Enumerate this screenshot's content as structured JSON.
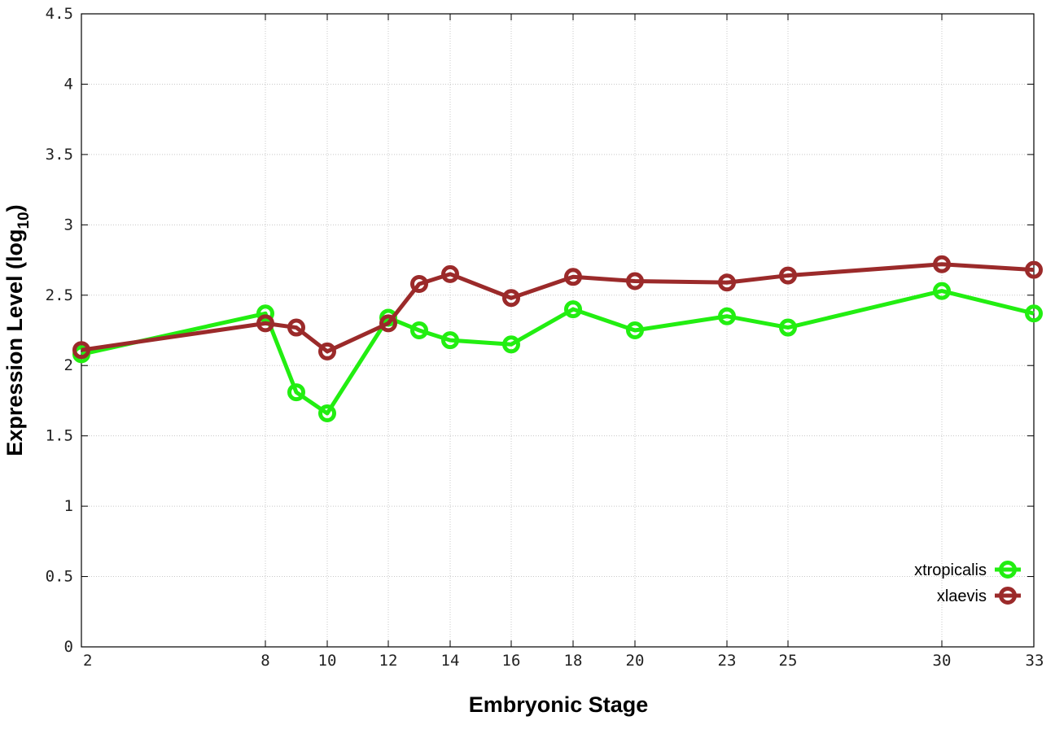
{
  "chart_data": {
    "type": "line",
    "xlabel": "Embryonic Stage",
    "ylabel": "Expression Level (log",
    "ylabel_subscript": "10",
    "ylabel_close": ")",
    "ylim": [
      0,
      4.5
    ],
    "y_ticks": [
      0,
      0.5,
      1,
      1.5,
      2,
      2.5,
      3,
      3.5,
      4,
      4.5
    ],
    "y_tick_labels": [
      "0",
      "0.5",
      "1",
      "1.5",
      "2",
      "2.5",
      "3",
      "3.5",
      "4",
      "4.5"
    ],
    "categories": [
      "2",
      "8",
      "9",
      "10",
      "12",
      "13",
      "14",
      "16",
      "18",
      "20",
      "23",
      "25",
      "30",
      "33"
    ],
    "x_tick_labels": [
      "2",
      "8",
      "10",
      "12",
      "14",
      "16",
      "18",
      "20",
      "23",
      "25",
      "30",
      "33"
    ],
    "grid": true,
    "legend_position": "bottom-right",
    "series": [
      {
        "name": "xtropicalis",
        "color": "#22ee11",
        "x": [
          2,
          8,
          9,
          10,
          12,
          13,
          14,
          16,
          18,
          20,
          23,
          25,
          30,
          33
        ],
        "values": [
          2.08,
          2.37,
          1.81,
          1.66,
          2.34,
          2.25,
          2.18,
          2.15,
          2.4,
          2.25,
          2.35,
          2.27,
          2.53,
          2.37
        ]
      },
      {
        "name": "xlaevis",
        "color": "#9b2a2a",
        "x": [
          2,
          8,
          9,
          10,
          12,
          13,
          14,
          16,
          18,
          20,
          23,
          25,
          30,
          33
        ],
        "values": [
          2.11,
          2.3,
          2.27,
          2.1,
          2.3,
          2.58,
          2.65,
          2.48,
          2.63,
          2.6,
          2.59,
          2.64,
          2.72,
          2.68
        ]
      }
    ]
  }
}
